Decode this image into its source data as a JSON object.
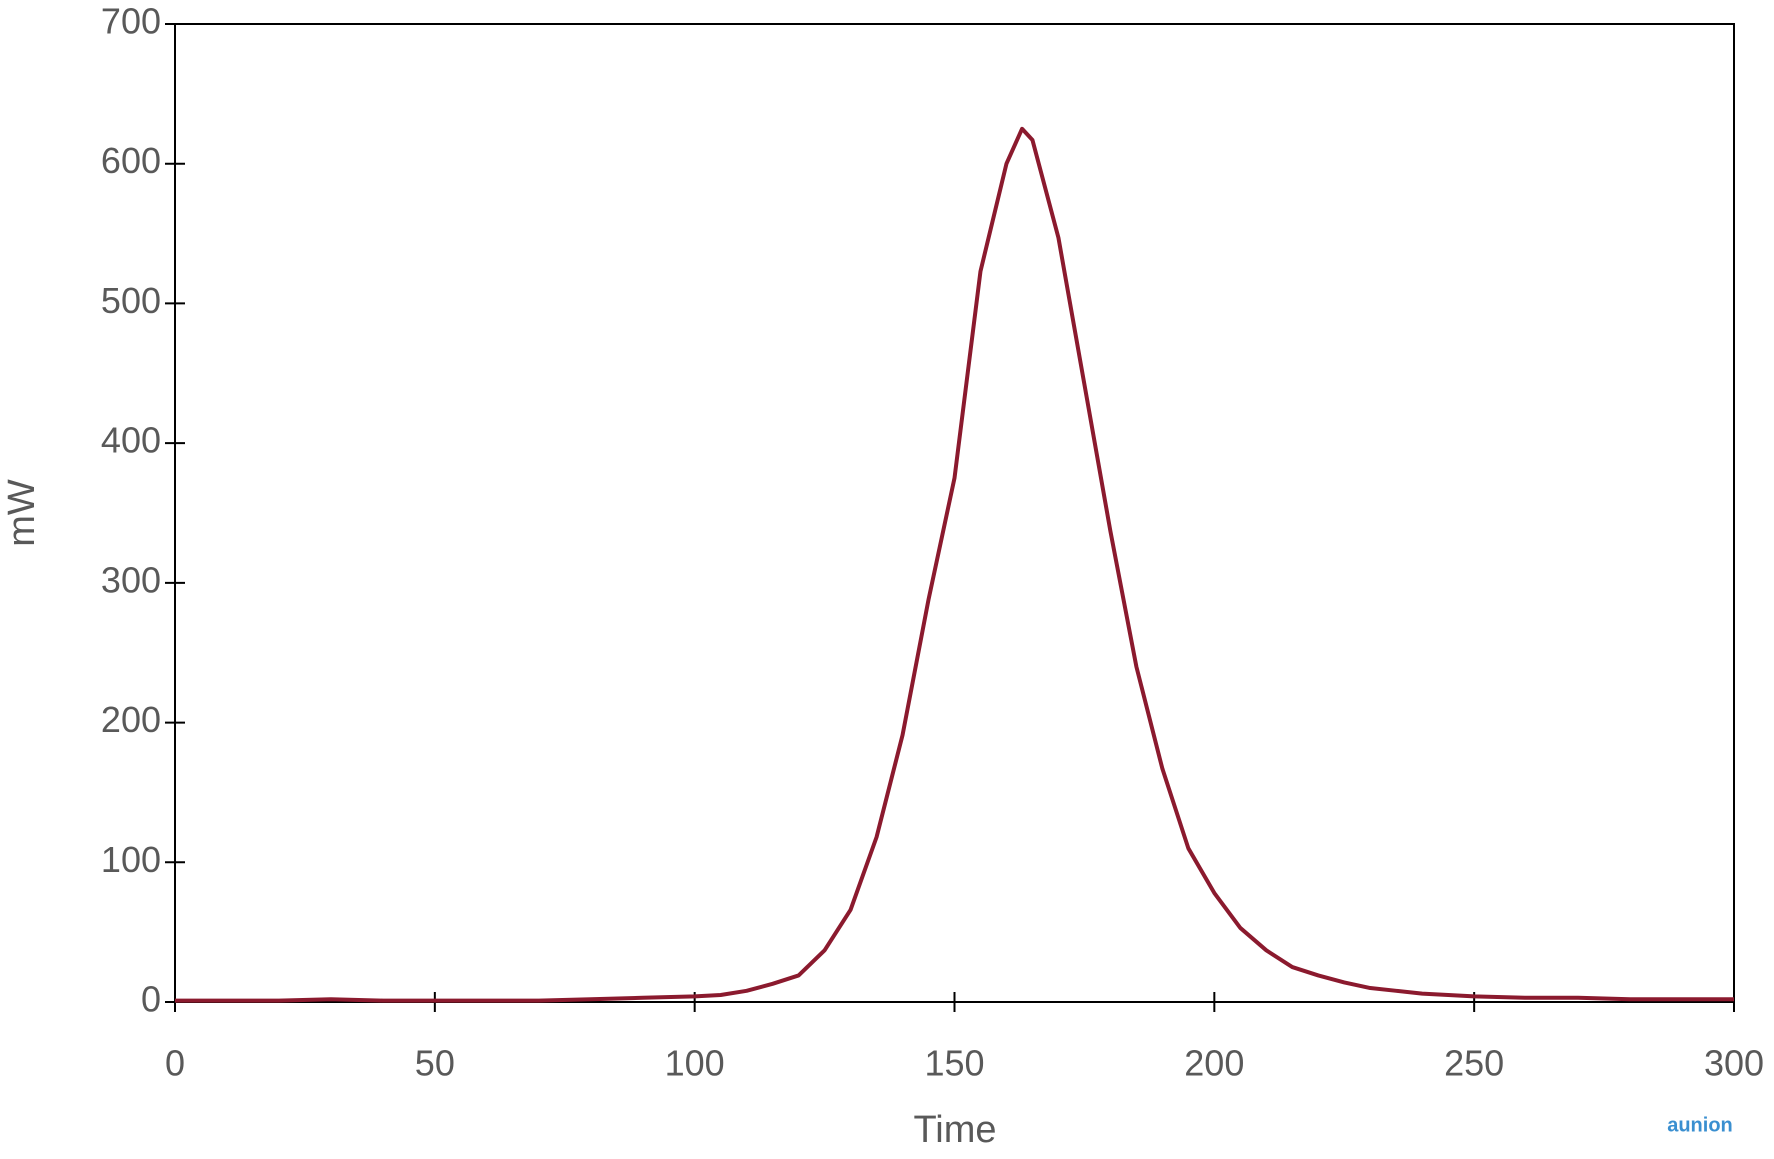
{
  "chart_data": {
    "type": "line",
    "xlabel": "Time",
    "ylabel": "mW",
    "watermark": "aunion",
    "x": [
      0,
      10,
      20,
      30,
      40,
      50,
      60,
      70,
      80,
      90,
      100,
      105,
      110,
      115,
      120,
      125,
      130,
      135,
      140,
      145,
      150,
      155,
      160,
      163,
      165,
      170,
      175,
      180,
      185,
      190,
      195,
      200,
      205,
      210,
      215,
      220,
      225,
      230,
      235,
      240,
      250,
      260,
      270,
      280,
      290,
      300
    ],
    "series": [
      {
        "name": "mW",
        "color": "#8b1a2e",
        "values": [
          1,
          1,
          1,
          2,
          1,
          1,
          1,
          1,
          2,
          3,
          4,
          5,
          8,
          13,
          19,
          37,
          66,
          118,
          191,
          288,
          375,
          523,
          600,
          625,
          617,
          547,
          442,
          337,
          240,
          167,
          110,
          78,
          53,
          37,
          25,
          19,
          14,
          10,
          8,
          6,
          4,
          3,
          3,
          2,
          2,
          2
        ]
      }
    ],
    "xlim": [
      0,
      300
    ],
    "xticks": [
      0,
      50,
      100,
      150,
      200,
      250,
      300
    ],
    "ylim": [
      0,
      700
    ],
    "yticks": [
      0,
      100,
      200,
      300,
      400,
      500,
      600,
      700
    ]
  }
}
